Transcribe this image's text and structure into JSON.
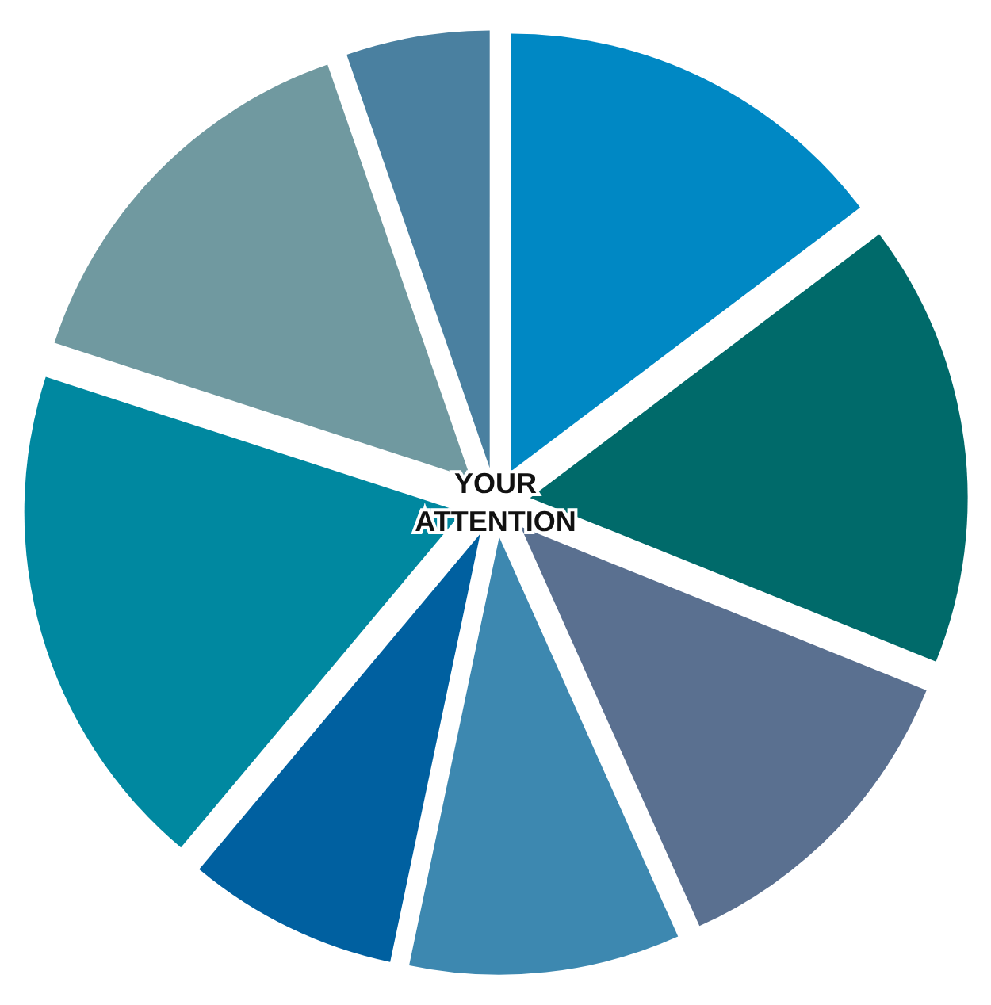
{
  "chart_data": {
    "type": "pie",
    "categories": [
      null,
      null,
      null,
      null,
      null,
      null,
      null,
      null
    ],
    "values": [
      14.7,
      16.4,
      12.2,
      10,
      7.8,
      18.9,
      14.7,
      5.3
    ],
    "colors": [
      "#0088c4",
      "#006a6a",
      "#5a7090",
      "#3d88b0",
      "#0060a0",
      "#0088a0",
      "#7099a0",
      "#4a80a0"
    ],
    "annotations": [
      "YOUR ATTENTION"
    ]
  }
}
